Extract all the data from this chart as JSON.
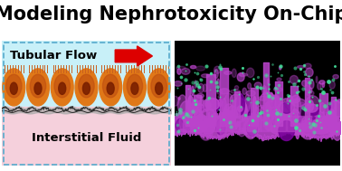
{
  "title": "Modeling Nephrotoxicity On-Chip",
  "title_fontsize": 15,
  "title_fontweight": "bold",
  "title_color": "#000000",
  "background_color": "#ffffff",
  "left_panel": {
    "bg_top": "#c8f0f8",
    "bg_bottom": "#f5d0dc",
    "dashed_border_color": "#55aacc",
    "tubular_flow_text": "Tubular Flow",
    "tubular_flow_color": "#000000",
    "tubular_flow_fontsize": 9.5,
    "interstitial_text": "Interstitial Fluid",
    "interstitial_color": "#000000",
    "interstitial_fontsize": 9.5,
    "arrow_color": "#dd0000",
    "cell_color_outer": "#e07818",
    "cell_color_inner": "#c05010",
    "cell_nucleus_color": "#7a2000",
    "num_cells": 7,
    "microvillus_color": "#c86020"
  },
  "right_panel": {
    "bg_color": "#000000",
    "purple_color": "#bb44cc",
    "purple_dark": "#770099",
    "green_color": "#44dd99",
    "seed": 123
  }
}
